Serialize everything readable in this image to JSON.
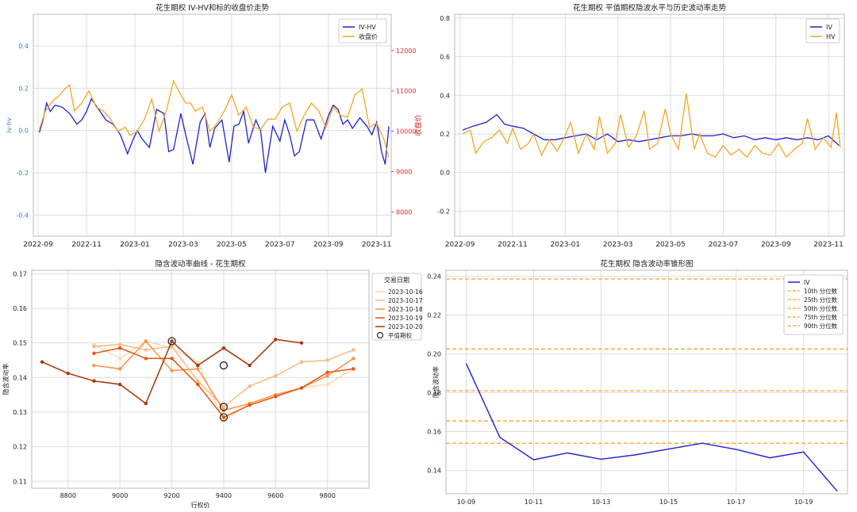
{
  "chart_data": [
    {
      "id": "c1",
      "type": "line",
      "title": "花生期权 IV-HV和标的收盘价走势",
      "xlabel": "",
      "ylabel": "iv-hv",
      "y2label": "收盘价",
      "x_ticks": [
        "2022-09",
        "2022-11",
        "2023-01",
        "2023-03",
        "2023-05",
        "2023-07",
        "2023-09",
        "2023-11"
      ],
      "xlim_month_index": [
        -0.2,
        14.6
      ],
      "ylim": [
        -0.5,
        0.55
      ],
      "y_ticks": [
        "0.4",
        "0.2",
        "0.0",
        "-0.2",
        "-0.4"
      ],
      "y2lim": [
        7400,
        12900
      ],
      "y2_ticks": [
        "12000",
        "11000",
        "10000",
        "9000",
        "8000"
      ],
      "grid": true,
      "legend_position": "top-right",
      "colors": {
        "iv_hv": "#1f1fd6",
        "close": "#f5a623",
        "left_axis": "#3a7fc4",
        "right_axis": "#d62728"
      },
      "series": [
        {
          "name": "IV-HV",
          "axis": "left",
          "color": "#1f1fd6",
          "x": [
            0.05,
            0.2,
            0.35,
            0.5,
            0.7,
            1.0,
            1.3,
            1.6,
            1.8,
            2.0,
            2.2,
            2.5,
            2.8,
            3.1,
            3.4,
            3.7,
            3.9,
            4.1,
            4.3,
            4.6,
            4.9,
            5.2,
            5.4,
            5.6,
            5.9,
            6.1,
            6.4,
            6.7,
            6.9,
            7.1,
            7.3,
            7.6,
            7.9,
            8.1,
            8.3,
            8.5,
            8.7,
            9.0,
            9.2,
            9.4,
            9.7,
            10.0,
            10.2,
            10.4,
            10.6,
            10.8,
            11.1,
            11.4,
            11.7,
            12.0,
            12.2,
            12.4,
            12.6,
            12.8,
            13.0,
            13.3,
            13.6,
            13.8,
            14.0,
            14.2,
            14.35,
            14.5
          ],
          "y": [
            -0.01,
            0.05,
            0.13,
            0.09,
            0.12,
            0.11,
            0.08,
            0.03,
            0.05,
            0.09,
            0.15,
            0.1,
            0.05,
            0.03,
            -0.02,
            -0.11,
            -0.05,
            0.0,
            -0.04,
            -0.08,
            0.1,
            0.08,
            -0.1,
            -0.09,
            0.08,
            -0.02,
            -0.16,
            0.04,
            0.08,
            -0.08,
            0.01,
            0.05,
            -0.15,
            0.02,
            0.03,
            0.09,
            -0.06,
            0.05,
            0.0,
            -0.2,
            0.02,
            -0.05,
            0.05,
            -0.02,
            -0.12,
            -0.1,
            0.05,
            0.05,
            -0.04,
            0.07,
            0.12,
            0.1,
            0.03,
            0.05,
            0.01,
            0.06,
            0.02,
            -0.02,
            0.04,
            -0.1,
            -0.16,
            0.02
          ]
        },
        {
          "name": "收盘价",
          "axis": "right",
          "color": "#f5a623",
          "x": [
            0.05,
            0.3,
            0.6,
            0.9,
            1.1,
            1.3,
            1.5,
            1.8,
            2.1,
            2.4,
            2.7,
            3.0,
            3.3,
            3.6,
            3.8,
            4.1,
            4.4,
            4.7,
            5.0,
            5.3,
            5.6,
            5.9,
            6.1,
            6.3,
            6.5,
            6.8,
            7.1,
            7.4,
            7.7,
            8.0,
            8.3,
            8.6,
            8.9,
            9.2,
            9.5,
            9.8,
            10.1,
            10.4,
            10.7,
            11.0,
            11.3,
            11.6,
            11.9,
            12.2,
            12.5,
            12.8,
            13.1,
            13.4,
            13.7,
            14.0,
            14.3,
            14.5
          ],
          "y": [
            10050,
            10500,
            10750,
            10900,
            11050,
            11150,
            10500,
            10700,
            11000,
            10600,
            10500,
            10300,
            10000,
            10100,
            9900,
            10000,
            10300,
            10800,
            10000,
            10500,
            11250,
            10900,
            10700,
            10700,
            10500,
            10600,
            10000,
            10200,
            10500,
            10900,
            10400,
            10600,
            10100,
            10050,
            10300,
            10300,
            10600,
            10700,
            10000,
            10400,
            10700,
            10500,
            10100,
            10600,
            10400,
            10350,
            10900,
            11050,
            10100,
            10200,
            9800,
            9350
          ]
        }
      ]
    },
    {
      "id": "c2",
      "type": "line",
      "title": "花生期权 平值期权隐波水平与历史波动率走势",
      "xlabel": "",
      "ylabel": "",
      "x_ticks": [
        "2022-09",
        "2022-11",
        "2023-01",
        "2023-03",
        "2023-05",
        "2023-07",
        "2023-09",
        "2023-11"
      ],
      "xlim_month_index": [
        -0.2,
        14.6
      ],
      "ylim": [
        -0.33,
        0.82
      ],
      "y_ticks": [
        "0.8",
        "0.6",
        "0.4",
        "0.2",
        "0.0",
        "-0.2"
      ],
      "grid": true,
      "legend_position": "top-right",
      "series": [
        {
          "name": "IV",
          "color": "#1f1fd6",
          "x": [
            0.1,
            0.5,
            1.0,
            1.4,
            1.7,
            2.0,
            2.4,
            2.8,
            3.2,
            3.6,
            4.0,
            4.4,
            4.8,
            5.2,
            5.6,
            6.0,
            6.4,
            6.8,
            7.2,
            7.6,
            8.0,
            8.4,
            8.8,
            9.2,
            9.6,
            10.0,
            10.4,
            10.8,
            11.2,
            11.6,
            12.0,
            12.4,
            12.8,
            13.2,
            13.6,
            14.0,
            14.4
          ],
          "y": [
            0.22,
            0.24,
            0.26,
            0.3,
            0.25,
            0.24,
            0.23,
            0.2,
            0.17,
            0.17,
            0.18,
            0.19,
            0.2,
            0.17,
            0.2,
            0.16,
            0.17,
            0.16,
            0.17,
            0.18,
            0.19,
            0.19,
            0.2,
            0.19,
            0.19,
            0.2,
            0.18,
            0.19,
            0.17,
            0.18,
            0.17,
            0.18,
            0.17,
            0.18,
            0.17,
            0.19,
            0.14
          ]
        },
        {
          "name": "HV",
          "color": "#f5a623",
          "x": [
            0.1,
            0.4,
            0.6,
            0.9,
            1.2,
            1.5,
            1.8,
            2.0,
            2.3,
            2.6,
            2.8,
            3.1,
            3.4,
            3.7,
            4.0,
            4.2,
            4.5,
            4.8,
            5.1,
            5.3,
            5.6,
            5.9,
            6.1,
            6.4,
            6.7,
            7.0,
            7.2,
            7.5,
            7.8,
            8.0,
            8.3,
            8.6,
            8.9,
            9.1,
            9.4,
            9.7,
            10.0,
            10.3,
            10.6,
            10.9,
            11.2,
            11.5,
            11.8,
            12.1,
            12.4,
            12.7,
            13.0,
            13.2,
            13.5,
            13.8,
            14.1,
            14.3,
            14.45
          ],
          "y": [
            0.2,
            0.22,
            0.1,
            0.16,
            0.18,
            0.22,
            0.15,
            0.23,
            0.12,
            0.15,
            0.2,
            0.09,
            0.17,
            0.11,
            0.19,
            0.26,
            0.1,
            0.2,
            0.12,
            0.29,
            0.1,
            0.15,
            0.3,
            0.13,
            0.19,
            0.32,
            0.12,
            0.15,
            0.33,
            0.2,
            0.12,
            0.41,
            0.12,
            0.2,
            0.1,
            0.08,
            0.14,
            0.09,
            0.12,
            0.08,
            0.14,
            0.1,
            0.09,
            0.15,
            0.08,
            0.12,
            0.15,
            0.28,
            0.12,
            0.18,
            0.13,
            0.31,
            0.13
          ]
        }
      ]
    },
    {
      "id": "c3",
      "type": "line",
      "title": "隐含波动率曲线 - 花生期权",
      "xlabel": "行权价",
      "ylabel": "隐含波动率",
      "xlim": [
        8660,
        9960
      ],
      "x_ticks": [
        8800,
        9000,
        9200,
        9400,
        9600,
        9800
      ],
      "ylim": [
        0.108,
        0.171
      ],
      "y_ticks": [
        0.11,
        0.12,
        0.13,
        0.14,
        0.15,
        0.16,
        0.17
      ],
      "grid": true,
      "legend_title": "交易日期",
      "legend_position": "outside-right-top",
      "marker_label": "平值期权",
      "series": [
        {
          "name": "2023-10-16",
          "color": "#fdd9b5",
          "x": [
            8900,
            9000,
            9100,
            9200,
            9300,
            9400,
            9500,
            9600,
            9700,
            9800,
            9900
          ],
          "y": [
            0.1495,
            0.1455,
            0.1505,
            0.1485,
            0.1445,
            0.1275,
            0.1325,
            0.135,
            0.137,
            0.138,
            0.1425
          ]
        },
        {
          "name": "2023-10-17",
          "color": "#fdb97d",
          "x": [
            8900,
            9000,
            9100,
            9200,
            9300,
            9400,
            9500,
            9600,
            9700,
            9800,
            9900
          ],
          "y": [
            0.149,
            0.1495,
            0.148,
            0.149,
            0.139,
            0.1315,
            0.1375,
            0.1405,
            0.1445,
            0.145,
            0.148
          ]
        },
        {
          "name": "2023-10-18",
          "color": "#fd9243",
          "x": [
            8900,
            9000,
            9100,
            9200,
            9300,
            9400,
            9500,
            9600,
            9700,
            9800,
            9900
          ],
          "y": [
            0.1435,
            0.1425,
            0.1505,
            0.142,
            0.1425,
            0.1305,
            0.1325,
            0.135,
            0.137,
            0.1405,
            0.1455
          ]
        },
        {
          "name": "2023-10-19",
          "color": "#e6550d",
          "x": [
            8900,
            9000,
            9100,
            9200,
            9300,
            9400,
            9500,
            9600,
            9700,
            9800,
            9900
          ],
          "y": [
            0.147,
            0.1485,
            0.1455,
            0.1455,
            0.138,
            0.1285,
            0.132,
            0.1345,
            0.137,
            0.1415,
            0.1425
          ]
        },
        {
          "name": "2023-10-20",
          "color": "#a63603",
          "x": [
            8700,
            8800,
            8900,
            9000,
            9100,
            9200,
            9300,
            9400,
            9500,
            9600,
            9700
          ],
          "y": [
            0.1445,
            0.1412,
            0.139,
            0.138,
            0.1325,
            0.1505,
            0.1435,
            0.1485,
            0.1435,
            0.151,
            0.15
          ]
        }
      ],
      "atm_points": [
        {
          "x": 9200,
          "y": 0.1505
        },
        {
          "x": 9400,
          "y": 0.1435
        },
        {
          "x": 9400,
          "y": 0.1315
        },
        {
          "x": 9400,
          "y": 0.1285
        }
      ]
    },
    {
      "id": "c4",
      "type": "line",
      "title": "花生期权 隐含波动率锥形图",
      "xlabel": "",
      "ylabel": "隐含波动率",
      "x_ticks": [
        "10-09",
        "10-11",
        "10-13",
        "10-15",
        "10-17",
        "10-19"
      ],
      "xlim_day_index": [
        -0.6,
        11.3
      ],
      "ylim": [
        0.128,
        0.243
      ],
      "y_ticks": [
        0.14,
        0.16,
        0.18,
        0.2,
        0.22,
        0.24
      ],
      "grid": true,
      "legend_position": "top-right",
      "series": [
        {
          "name": "IV",
          "color": "#1f1fd6",
          "x": [
            0,
            1,
            2,
            3,
            4,
            5,
            6,
            7,
            8,
            9,
            10,
            11
          ],
          "y": [
            0.195,
            0.157,
            0.1455,
            0.149,
            0.1458,
            0.148,
            0.151,
            0.154,
            0.1508,
            0.1465,
            0.1495,
            0.1293
          ]
        }
      ],
      "percentiles": [
        {
          "name": "10th 分位数",
          "value": 0.154,
          "color": "#f5a623"
        },
        {
          "name": "25th 分位数",
          "value": 0.1655,
          "color": "#f5a623"
        },
        {
          "name": "50th 分位数",
          "value": 0.181,
          "color": "#f5a623"
        },
        {
          "name": "75th 分位数",
          "value": 0.2025,
          "color": "#f5a623"
        },
        {
          "name": "90th 分位数",
          "value": 0.2385,
          "color": "#f5a623"
        }
      ]
    }
  ]
}
